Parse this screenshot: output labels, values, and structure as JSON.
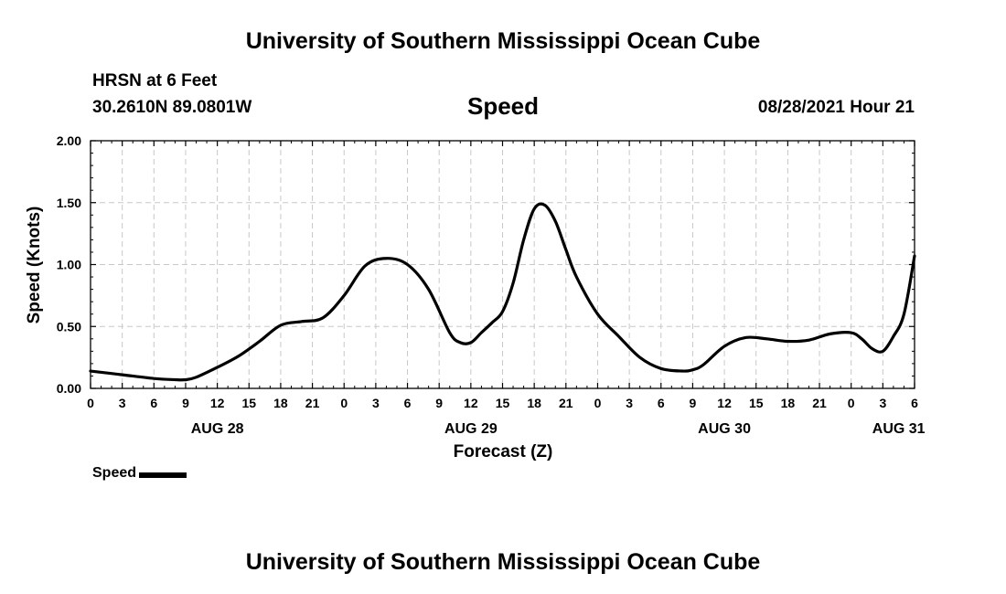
{
  "header": {
    "title": "University of Southern Mississippi Ocean Cube",
    "station": "HRSN at 6 Feet",
    "coordinates": "30.2610N  89.0801W",
    "timestamp": "08/28/2021 Hour 21"
  },
  "footer": {
    "title": "University of Southern Mississippi Ocean Cube"
  },
  "legend": {
    "label": "Speed"
  },
  "chart_data": {
    "type": "line",
    "title": "Speed",
    "xlabel": "Forecast (Z)",
    "ylabel": "Speed (Knots)",
    "x_unit": "hours since AUG 28 00Z",
    "xlim": [
      0,
      78
    ],
    "ylim": [
      0,
      2
    ],
    "y_ticks": [
      0.0,
      0.5,
      1.0,
      1.5,
      2.0
    ],
    "y_tick_labels": [
      "0.00",
      "0.50",
      "1.00",
      "1.50",
      "2.00"
    ],
    "x_ticks": [
      0,
      3,
      6,
      9,
      12,
      15,
      18,
      21,
      24,
      27,
      30,
      33,
      36,
      39,
      42,
      45,
      48,
      51,
      54,
      57,
      60,
      63,
      66,
      69,
      72,
      75,
      78
    ],
    "x_tick_labels": [
      "0",
      "3",
      "6",
      "9",
      "12",
      "15",
      "18",
      "21",
      "0",
      "3",
      "6",
      "9",
      "12",
      "15",
      "18",
      "21",
      "0",
      "3",
      "6",
      "9",
      "12",
      "15",
      "18",
      "21",
      "0",
      "3",
      "6"
    ],
    "day_labels": [
      {
        "hour": 12,
        "label": "AUG 28"
      },
      {
        "hour": 36,
        "label": "AUG 29"
      },
      {
        "hour": 60,
        "label": "AUG 30"
      },
      {
        "hour": 76.5,
        "label": "AUG 31"
      }
    ],
    "grid": true,
    "series": [
      {
        "name": "Speed",
        "color": "#000000",
        "x": [
          0,
          3,
          6,
          8,
          9,
          10,
          12,
          14,
          16,
          18,
          20,
          22,
          24,
          26,
          28,
          30,
          32,
          34,
          35,
          36,
          37,
          38,
          39,
          40,
          41,
          42,
          43,
          44,
          45,
          46,
          48,
          50,
          52,
          54,
          56,
          57,
          58,
          60,
          62,
          64,
          66,
          68,
          70,
          72,
          73,
          74,
          75,
          76,
          77,
          78
        ],
        "values": [
          0.14,
          0.11,
          0.08,
          0.07,
          0.07,
          0.09,
          0.17,
          0.26,
          0.38,
          0.51,
          0.54,
          0.57,
          0.75,
          0.99,
          1.05,
          1.0,
          0.8,
          0.45,
          0.37,
          0.37,
          0.45,
          0.53,
          0.62,
          0.85,
          1.2,
          1.45,
          1.48,
          1.35,
          1.12,
          0.9,
          0.6,
          0.42,
          0.25,
          0.16,
          0.14,
          0.15,
          0.19,
          0.34,
          0.41,
          0.4,
          0.38,
          0.39,
          0.44,
          0.45,
          0.4,
          0.32,
          0.3,
          0.42,
          0.6,
          1.07
        ]
      }
    ]
  }
}
